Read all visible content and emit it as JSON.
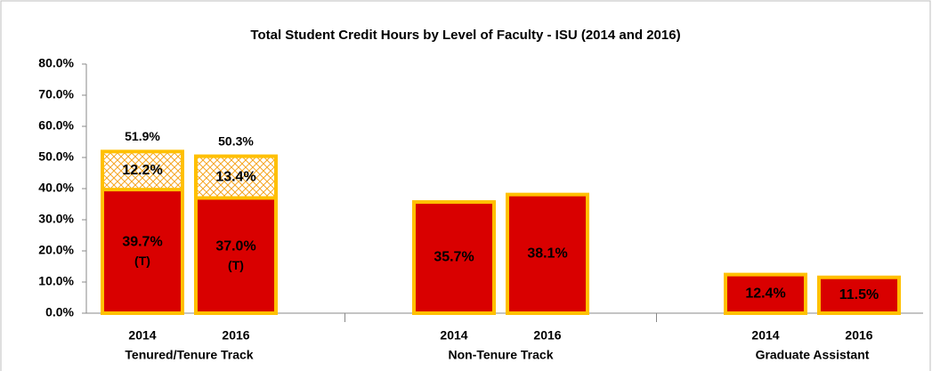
{
  "chart_data": {
    "type": "stacked_bar",
    "title": "Total Student Credit Hours by Level of Faculty - ISU (2014 and 2016)",
    "categories": [
      "2014",
      "2016",
      "2014",
      "2016",
      "2014",
      "2016"
    ],
    "groups": [
      "Tenured/Tenure Track",
      "Non-Tenure Track",
      "Graduate Assistant"
    ],
    "series": [
      {
        "color": "#d90000",
        "values": [
          39.7,
          37.0,
          35.7,
          38.1,
          12.4,
          11.5
        ],
        "value_labels": [
          "39.7%",
          "37.0%",
          "35.7%",
          "38.1%",
          "12.4%",
          "11.5%"
        ],
        "notes": [
          "(T)",
          "(T)",
          null,
          null,
          null,
          null
        ]
      },
      {
        "color": "#f5a623",
        "hatched": true,
        "values": [
          12.2,
          13.4,
          null,
          null,
          null,
          null
        ],
        "value_labels": [
          "12.2%",
          "13.4%",
          null,
          null,
          null,
          null
        ]
      }
    ],
    "totals": [
      51.9,
      50.3,
      null,
      null,
      null,
      null
    ],
    "total_labels": [
      "51.9%",
      "50.3%",
      null,
      null,
      null,
      null
    ],
    "outline_color": "#ffc000",
    "ylim": [
      0,
      80
    ],
    "yticks": [
      {
        "value": 0,
        "label": "0.0%"
      },
      {
        "value": 10,
        "label": "10.0%"
      },
      {
        "value": 20,
        "label": "20.0%"
      },
      {
        "value": 30,
        "label": "30.0%"
      },
      {
        "value": 40,
        "label": "40.0%"
      },
      {
        "value": 50,
        "label": "50.0%"
      },
      {
        "value": 60,
        "label": "60.0%"
      },
      {
        "value": 70,
        "label": "70.0%"
      },
      {
        "value": 80,
        "label": "80.0%"
      }
    ],
    "grid": false
  }
}
